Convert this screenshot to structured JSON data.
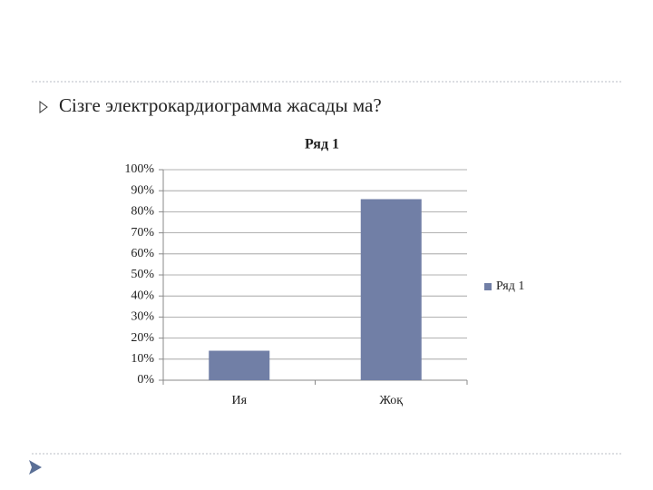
{
  "slide": {
    "heading": "Сізге электрокардиограмма жасады ма?"
  },
  "chart_data": {
    "type": "bar",
    "title": "Ряд 1",
    "categories": [
      "Ия",
      "Жоқ"
    ],
    "series": [
      {
        "name": "Ряд 1",
        "color": "#717fa6",
        "values": [
          14,
          86
        ]
      }
    ],
    "ylim": [
      0,
      100
    ],
    "yticks": [
      {
        "value": 0,
        "label": "0%"
      },
      {
        "value": 10,
        "label": "10%"
      },
      {
        "value": 20,
        "label": "20%"
      },
      {
        "value": 30,
        "label": "30%"
      },
      {
        "value": 40,
        "label": "40%"
      },
      {
        "value": 50,
        "label": "50%"
      },
      {
        "value": 60,
        "label": "60%"
      },
      {
        "value": 70,
        "label": "70%"
      },
      {
        "value": 80,
        "label": "80%"
      },
      {
        "value": 90,
        "label": "90%"
      },
      {
        "value": 100,
        "label": "100%"
      }
    ],
    "grid": true,
    "legend": "right"
  }
}
